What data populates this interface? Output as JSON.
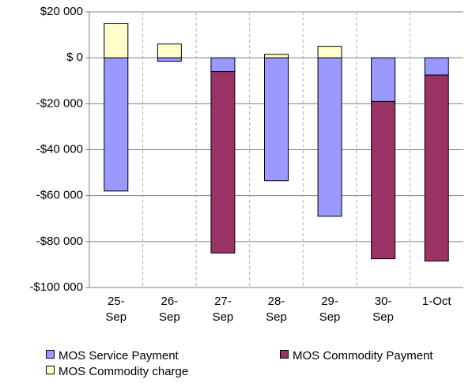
{
  "chart_data": {
    "type": "stacked_bar",
    "categories": [
      "25-Sep",
      "26-Sep",
      "27-Sep",
      "28-Sep",
      "29-Sep",
      "30-Sep",
      "1-Oct"
    ],
    "series": [
      {
        "name": "MOS Service Payment",
        "color": "#9999ff",
        "values": [
          -58000,
          -1500,
          -6000,
          -53500,
          -69000,
          -19000,
          -7500
        ]
      },
      {
        "name": "MOS Commodity Payment",
        "color": "#993366",
        "values": [
          0,
          0,
          -79000,
          0,
          0,
          -68500,
          -81000
        ]
      },
      {
        "name": "MOS Commodity charge",
        "color": "#ffffcc",
        "values": [
          15000,
          6000,
          0,
          1500,
          5000,
          0,
          0
        ]
      }
    ],
    "ylim": [
      -100000,
      20000
    ],
    "yticks": [
      {
        "value": -100000,
        "label": "-$100 000"
      },
      {
        "value": -80000,
        "label": "-$80 000"
      },
      {
        "value": -60000,
        "label": "-$60 000"
      },
      {
        "value": -40000,
        "label": "-$40 000"
      },
      {
        "value": -20000,
        "label": "-$20 000"
      },
      {
        "value": 0,
        "label": "$ 0"
      },
      {
        "value": 20000,
        "label": "$20 000"
      }
    ],
    "grid": true
  }
}
